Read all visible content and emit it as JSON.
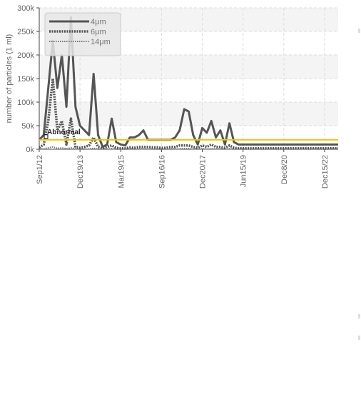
{
  "chart_data": {
    "type": "line",
    "ylabel": "number of particles (1 ml)",
    "xlabel": "",
    "ylim": [
      0,
      300000
    ],
    "yticks": [
      0,
      50000,
      100000,
      150000,
      200000,
      250000,
      300000
    ],
    "ytick_labels": [
      "0k",
      "50k",
      "100k",
      "150k",
      "200k",
      "250k",
      "300k"
    ],
    "xtick_labels": [
      "Sep1/12",
      "Dec19/13",
      "Mar19/15",
      "Sep16/16",
      "Dec20/17",
      "Jun15/19",
      "Dec8/20",
      "Dec15/22"
    ],
    "xtick_positions": [
      0,
      9,
      18,
      27,
      36,
      45,
      54,
      63
    ],
    "x_count": 67,
    "grid": true,
    "legend_position": "top-left",
    "series": [
      {
        "name": "4μm",
        "style": "solid",
        "color": "#555555",
        "values": [
          20000,
          30000,
          130000,
          230000,
          130000,
          200000,
          90000,
          280000,
          90000,
          50000,
          40000,
          30000,
          160000,
          30000,
          5000,
          10000,
          65000,
          15000,
          10000,
          8000,
          25000,
          25000,
          30000,
          40000,
          20000,
          20000,
          20000,
          20000,
          20000,
          20000,
          25000,
          40000,
          85000,
          80000,
          30000,
          10000,
          45000,
          35000,
          60000,
          25000,
          40000,
          10000,
          55000,
          15000,
          10000,
          10000,
          10000,
          10000,
          10000,
          10000,
          10000,
          10000,
          10000,
          10000,
          10000,
          10000,
          10000,
          10000,
          10000,
          10000,
          10000,
          10000,
          10000,
          10000,
          10000,
          10000,
          10000
        ]
      },
      {
        "name": "6μm",
        "style": "dotted",
        "color": "#555555",
        "values": [
          3000,
          10000,
          60000,
          150000,
          40000,
          60000,
          10000,
          65000,
          5000,
          3000,
          5000,
          8000,
          25000,
          5000,
          2000,
          5000,
          8000,
          3000,
          2000,
          2000,
          4000,
          3000,
          5000,
          5000,
          5000,
          4000,
          4000,
          3000,
          3000,
          5000,
          5000,
          8000,
          8000,
          8000,
          5000,
          3000,
          8000,
          5000,
          10000,
          5000,
          5000,
          3000,
          8000,
          3000,
          2000,
          2000,
          2000,
          2000,
          2000,
          2000,
          2000,
          2000,
          2000,
          2000,
          2000,
          2000,
          2000,
          2000,
          2000,
          2000,
          2000,
          2000,
          2000,
          2000,
          2000,
          2000,
          2000
        ]
      },
      {
        "name": "14μm",
        "style": "fine-dotted",
        "color": "#777777",
        "values": [
          500,
          1000,
          3000,
          5000,
          2000,
          3000,
          1000,
          3000,
          800,
          500,
          500,
          800,
          2000,
          500,
          300,
          500,
          1000,
          400,
          300,
          300,
          600,
          500,
          700,
          800,
          700,
          600,
          500,
          500,
          500,
          600,
          700,
          1000,
          1500,
          1500,
          800,
          500,
          1000,
          800,
          1200,
          700,
          800,
          500,
          1000,
          500,
          400,
          400,
          400,
          400,
          400,
          400,
          400,
          400,
          400,
          400,
          400,
          400,
          400,
          400,
          400,
          400,
          400,
          400,
          400,
          400,
          400,
          400,
          400
        ]
      }
    ],
    "threshold": {
      "value": 20000,
      "color": "#f2c200",
      "label": "Abnormal"
    }
  }
}
